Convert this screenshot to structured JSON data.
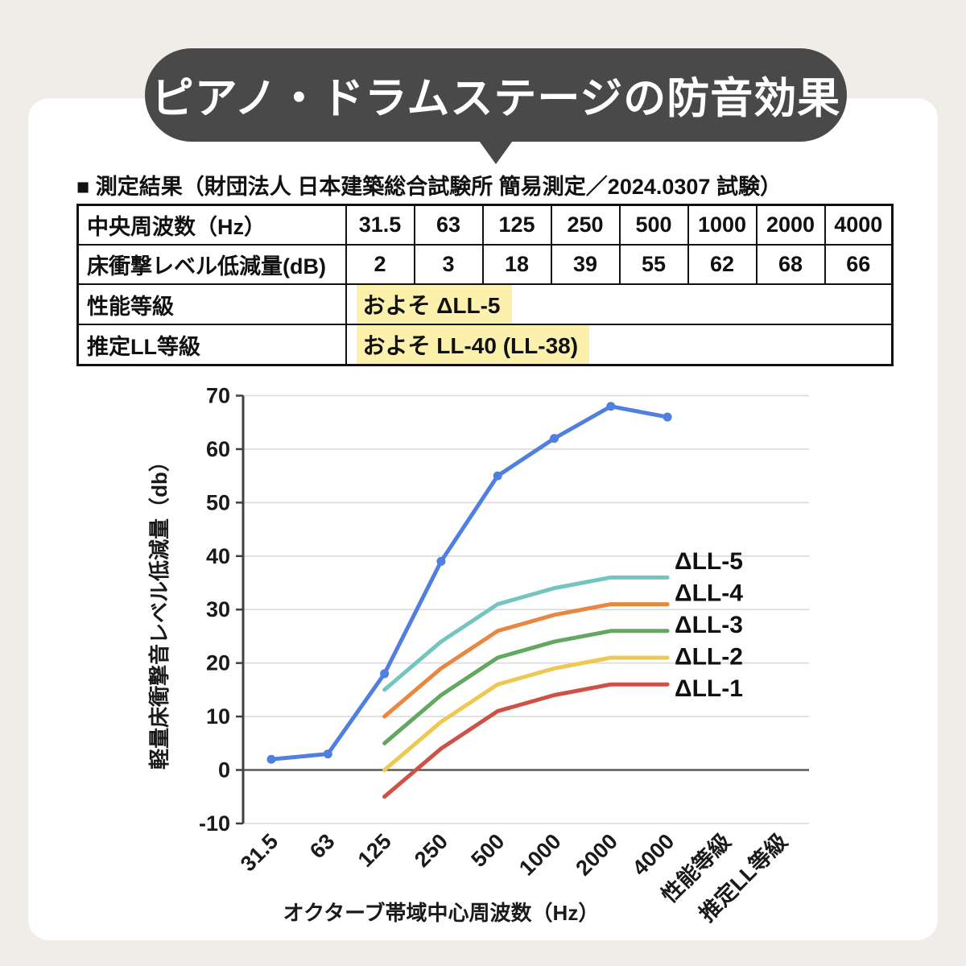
{
  "colors": {
    "background": "#f0ede8",
    "panel": "#ffffff",
    "bubble": "#494949",
    "title_text": "#ffffff",
    "table_border": "#111111",
    "highlight": "#fcf1ac",
    "grid_line": "#d8d8d8",
    "zero_line": "#5a5a5a",
    "axis": "#404040"
  },
  "header": {
    "title": "ピアノ・ドラムステージの防音効果"
  },
  "section": {
    "heading": "■ 測定結果（財団法人 日本建築総合試験所 簡易測定／2024.0307 試験）"
  },
  "table": {
    "rows": [
      {
        "label": "中央周波数（Hz）",
        "values": [
          "31.5",
          "63",
          "125",
          "250",
          "500",
          "1000",
          "2000",
          "4000"
        ]
      },
      {
        "label": "床衝撃レベル低減量(dB)",
        "values": [
          "2",
          "3",
          "18",
          "39",
          "55",
          "62",
          "68",
          "66"
        ]
      },
      {
        "label": "性能等級",
        "highlight": "およそ ΔLL-5"
      },
      {
        "label": "推定LL等級",
        "highlight": "およそ LL-40 (LL-38)"
      }
    ]
  },
  "chart_data": {
    "type": "line",
    "title": "",
    "xlabel": "オクターブ帯域中心周波数（Hz）",
    "ylabel": "軽量床衝撃音レベル低減量（db）",
    "ylim": [
      -10,
      70
    ],
    "ytick_step": 10,
    "grid": true,
    "legend_position": "right-inline-labels",
    "categories": [
      "31.5",
      "63",
      "125",
      "250",
      "500",
      "1000",
      "2000",
      "4000",
      "性能等級",
      "推定LL等級"
    ],
    "series": [
      {
        "name": "measured",
        "label": "",
        "color": "#4e7fe1",
        "marker": true,
        "start_index": 0,
        "values": [
          2,
          3,
          18,
          39,
          55,
          62,
          68,
          66
        ]
      },
      {
        "name": "delta-LL-5",
        "label": "ΔLL-5",
        "color": "#72c5c0",
        "marker": false,
        "start_index": 2,
        "values": [
          15,
          24,
          31,
          34,
          36,
          36
        ]
      },
      {
        "name": "delta-LL-4",
        "label": "ΔLL-4",
        "color": "#e98740",
        "marker": false,
        "start_index": 2,
        "values": [
          10,
          19,
          26,
          29,
          31,
          31
        ]
      },
      {
        "name": "delta-LL-3",
        "label": "ΔLL-3",
        "color": "#63a860",
        "marker": false,
        "start_index": 2,
        "values": [
          5,
          14,
          21,
          24,
          26,
          26
        ]
      },
      {
        "name": "delta-LL-2",
        "label": "ΔLL-2",
        "color": "#eec851",
        "marker": false,
        "start_index": 2,
        "values": [
          0,
          9,
          16,
          19,
          21,
          21
        ]
      },
      {
        "name": "delta-LL-1",
        "label": "ΔLL-1",
        "color": "#cf5044",
        "marker": false,
        "start_index": 2,
        "values": [
          -5,
          4,
          11,
          14,
          16,
          16
        ]
      }
    ]
  }
}
